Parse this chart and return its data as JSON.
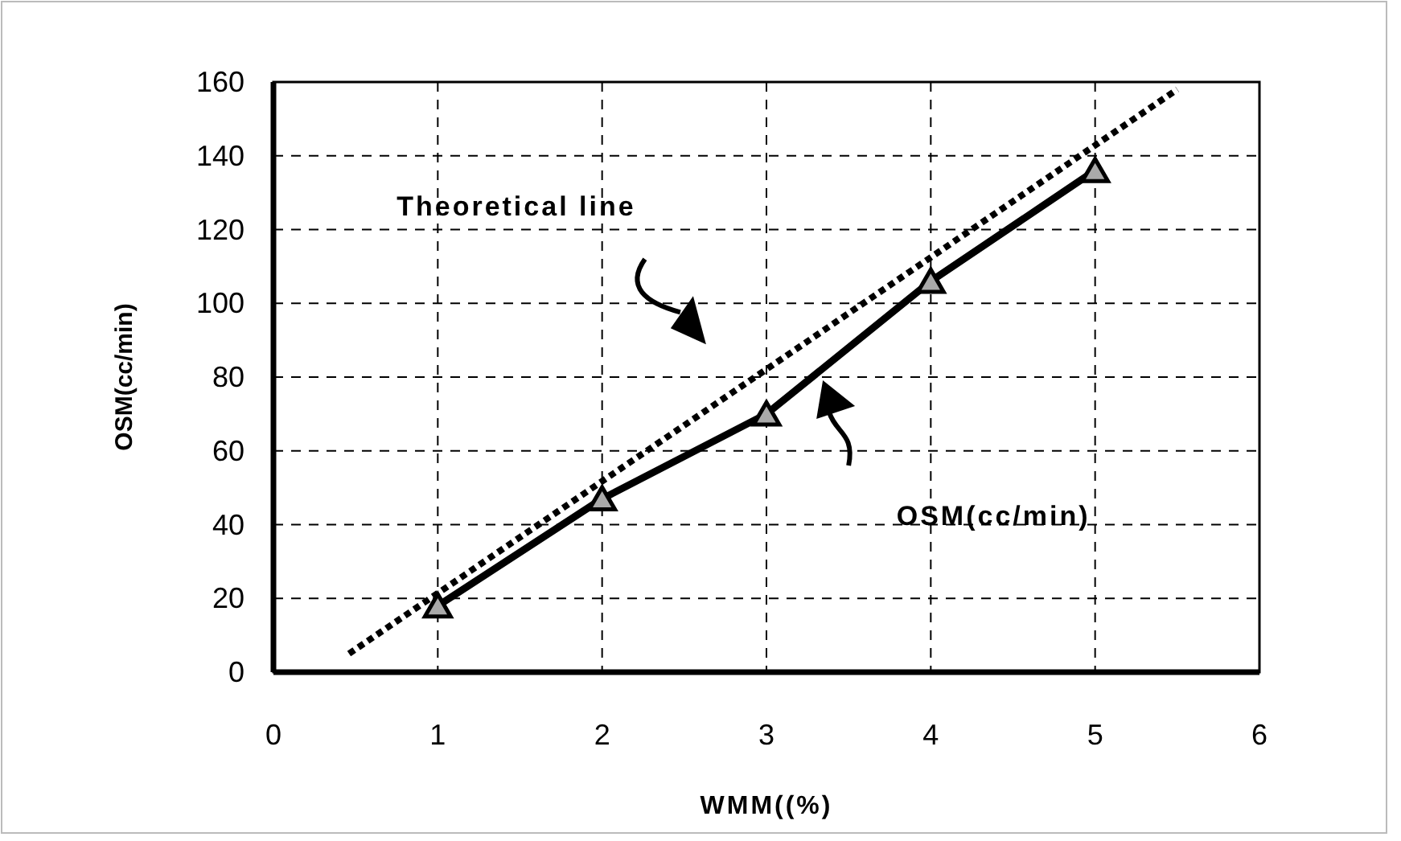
{
  "chart_data": {
    "type": "line",
    "xlabel": "WMM((%)",
    "ylabel": "OSM(cc/min)",
    "xlim": [
      0,
      6
    ],
    "xticks": [
      0,
      1,
      2,
      3,
      4,
      5,
      6
    ],
    "ylim": [
      0,
      160
    ],
    "yticks": [
      0,
      20,
      40,
      60,
      80,
      100,
      120,
      140,
      160
    ],
    "grid": true,
    "series": [
      {
        "color": "#000000",
        "x": [
          1,
          2,
          3,
          4,
          5
        ],
        "values": [
          18,
          47,
          70,
          106,
          136
        ],
        "marker": "triangle",
        "line_style": "solid"
      },
      {
        "color": "#000000",
        "x": [
          0.46,
          5.5
        ],
        "values": [
          5,
          158
        ],
        "marker": "none",
        "line_style": "dotted"
      }
    ],
    "annotations": [
      "Theoretical line",
      "OSM(cc/min)"
    ]
  }
}
